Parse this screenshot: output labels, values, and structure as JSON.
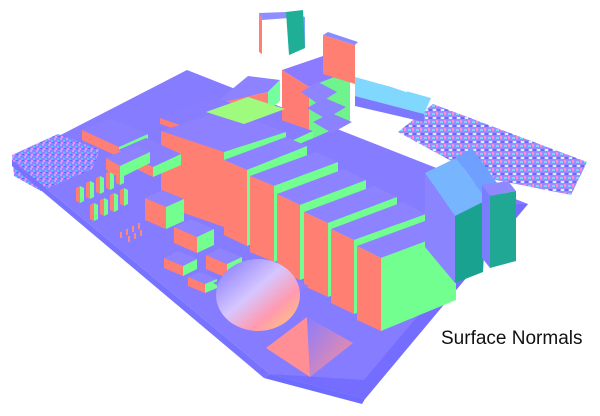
{
  "caption": {
    "text": "Surface Normals"
  },
  "palette": {
    "up_normal": "#8a7cff",
    "x_normal": "#ff7f73",
    "z_normal": "#6fff8f",
    "side_blue": "#7a78ff",
    "shadow_teal": "#1aa092",
    "sphere_edge": "#ff8aa0"
  },
  "scene": {
    "description_name": "normal-map-render"
  }
}
